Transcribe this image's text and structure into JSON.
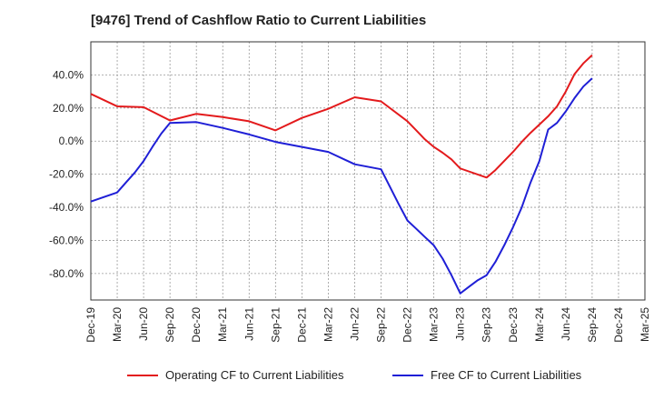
{
  "chart_data": {
    "type": "line",
    "title": "[9476]  Trend of Cashflow Ratio to Current Liabilities",
    "xlabel": "",
    "ylabel": "",
    "x_ticks": [
      "Dec-19",
      "Mar-20",
      "Jun-20",
      "Sep-20",
      "Dec-20",
      "Mar-21",
      "Jun-21",
      "Sep-21",
      "Dec-21",
      "Mar-22",
      "Jun-22",
      "Sep-22",
      "Dec-22",
      "Mar-23",
      "Jun-23",
      "Sep-23",
      "Dec-23",
      "Mar-24",
      "Jun-24",
      "Sep-24",
      "Dec-24",
      "Mar-25"
    ],
    "y_ticks": [
      "40.0%",
      "20.0%",
      "0.0%",
      "-20.0%",
      "-40.0%",
      "-60.0%",
      "-80.0%"
    ],
    "ylim": [
      -96,
      60
    ],
    "grid": true,
    "legend_position": "bottom",
    "series": [
      {
        "name": "Operating CF to Current Liabilities",
        "color": "#e31a1c",
        "x": [
          "Dec-19",
          "Mar-20",
          "Jun-20",
          "Sep-20",
          "Dec-20",
          "Mar-21",
          "Jun-21",
          "Sep-21",
          "Dec-21",
          "Mar-22",
          "Jun-22",
          "Sep-22",
          "Dec-22",
          "Jan-23",
          "Feb-23",
          "Mar-23",
          "Apr-23",
          "May-23",
          "Jun-23",
          "Sep-23",
          "Oct-23",
          "Nov-23",
          "Dec-23",
          "Jan-24",
          "Feb-24",
          "Mar-24",
          "Apr-24",
          "May-24",
          "Jun-24",
          "Jul-24",
          "Aug-24",
          "Sep-24"
        ],
        "values": [
          28.5,
          21,
          20.5,
          12.5,
          16.5,
          14.5,
          12,
          6.5,
          14,
          19.5,
          26.5,
          24,
          12,
          6.5,
          1,
          -3.5,
          -7,
          -11,
          -16.5,
          -22,
          -17.5,
          -12,
          -6.5,
          -0.5,
          5,
          10,
          15,
          21,
          30,
          40.5,
          47,
          52
        ]
      },
      {
        "name": "Free CF to Current Liabilities",
        "color": "#1f1fd6",
        "x": [
          "Dec-19",
          "Mar-20",
          "Apr-20",
          "May-20",
          "Jun-20",
          "Jul-20",
          "Aug-20",
          "Sep-20",
          "Dec-20",
          "Mar-21",
          "Jun-21",
          "Sep-21",
          "Dec-21",
          "Mar-22",
          "Jun-22",
          "Sep-22",
          "Oct-22",
          "Nov-22",
          "Dec-22",
          "Jan-23",
          "Feb-23",
          "Mar-23",
          "Apr-23",
          "May-23",
          "Jun-23",
          "Jul-23",
          "Aug-23",
          "Sep-23",
          "Oct-23",
          "Nov-23",
          "Dec-23",
          "Jan-24",
          "Feb-24",
          "Mar-24",
          "Apr-24",
          "May-24",
          "Jun-24",
          "Jul-24",
          "Aug-24",
          "Sep-24"
        ],
        "values": [
          -36.5,
          -31,
          -25,
          -19,
          -12,
          -3.5,
          4.5,
          11,
          11.5,
          8,
          4,
          -0.5,
          -3.5,
          -6.5,
          -14,
          -17,
          -27.5,
          -38,
          -48,
          -53,
          -58,
          -63,
          -71,
          -81,
          -92,
          -88,
          -84,
          -81,
          -73,
          -63,
          -52,
          -40,
          -25,
          -12,
          7,
          11,
          18,
          26,
          33,
          38
        ]
      }
    ]
  }
}
